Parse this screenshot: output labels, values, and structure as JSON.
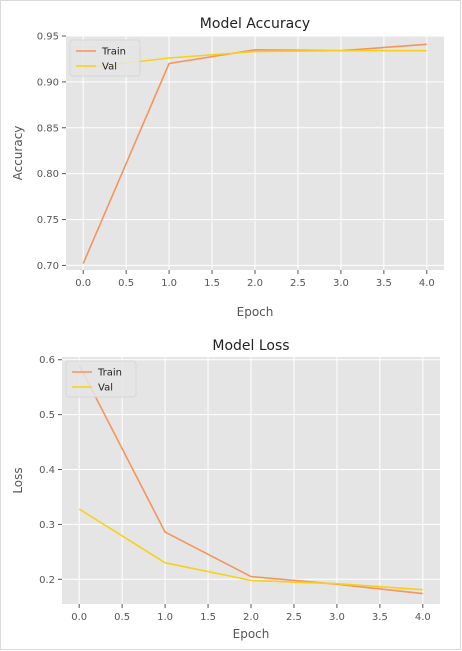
{
  "chart_data": [
    {
      "type": "line",
      "title": "Model Accuracy",
      "xlabel": "Epoch",
      "ylabel": "Accuracy",
      "x": [
        0,
        1,
        2,
        3,
        4
      ],
      "xlim": [
        -0.2,
        4.2
      ],
      "ylim": [
        0.695,
        0.95
      ],
      "xticks": [
        0.0,
        0.5,
        1.0,
        1.5,
        2.0,
        2.5,
        3.0,
        3.5,
        4.0
      ],
      "yticks": [
        0.7,
        0.75,
        0.8,
        0.85,
        0.9,
        0.95
      ],
      "xtick_labels": [
        "0.0",
        "0.5",
        "1.0",
        "1.5",
        "2.0",
        "2.5",
        "3.0",
        "3.5",
        "4.0"
      ],
      "ytick_labels": [
        "0.70",
        "0.75",
        "0.80",
        "0.85",
        "0.90",
        "0.95"
      ],
      "grid": true,
      "legend": "top-left",
      "series": [
        {
          "name": "Train",
          "color": "#F4945E",
          "values": [
            0.702,
            0.92,
            0.935,
            0.934,
            0.941
          ]
        },
        {
          "name": "Val",
          "color": "#F7D117",
          "values": [
            0.915,
            0.926,
            0.933,
            0.934,
            0.934
          ]
        }
      ]
    },
    {
      "type": "line",
      "title": "Model Loss",
      "xlabel": "Epoch",
      "ylabel": "Loss",
      "x": [
        0,
        1,
        2,
        3,
        4
      ],
      "xlim": [
        -0.2,
        4.2
      ],
      "ylim": [
        0.155,
        0.605
      ],
      "xticks": [
        0.0,
        0.5,
        1.0,
        1.5,
        2.0,
        2.5,
        3.0,
        3.5,
        4.0
      ],
      "yticks": [
        0.2,
        0.3,
        0.4,
        0.5,
        0.6
      ],
      "xtick_labels": [
        "0.0",
        "0.5",
        "1.0",
        "1.5",
        "2.0",
        "2.5",
        "3.0",
        "3.5",
        "4.0"
      ],
      "ytick_labels": [
        "0.2",
        "0.3",
        "0.4",
        "0.5",
        "0.6"
      ],
      "grid": true,
      "legend": "top-left",
      "series": [
        {
          "name": "Train",
          "color": "#F4945E",
          "values": [
            0.59,
            0.286,
            0.205,
            0.191,
            0.174
          ]
        },
        {
          "name": "Val",
          "color": "#F7D117",
          "values": [
            0.328,
            0.23,
            0.198,
            0.192,
            0.181
          ]
        }
      ]
    }
  ]
}
